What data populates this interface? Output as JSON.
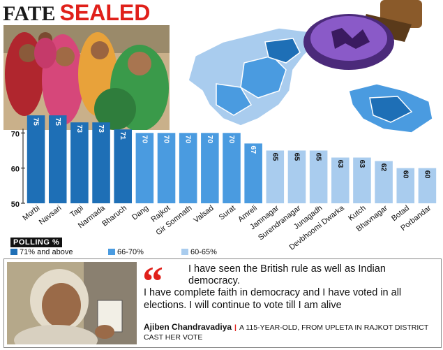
{
  "headline": {
    "part1": "FATE",
    "part2": "SEALED"
  },
  "legend": {
    "title": "POLLING %",
    "items": [
      {
        "label": "71% and above",
        "color": "#1e6fb6"
      },
      {
        "label": "66-70%",
        "color": "#4a9be0"
      },
      {
        "label": "60-65%",
        "color": "#a9ccee"
      }
    ]
  },
  "chart_data": {
    "type": "bar",
    "categories": [
      "Morbi",
      "Navsari",
      "Tapi",
      "Narmada",
      "Bharuch",
      "Dang",
      "Rajkot",
      "Gir Somnath",
      "Valsad",
      "Surat",
      "Amreli",
      "Jamnagar",
      "Surendranagar",
      "Junagadh",
      "Devbhoomi Dwarka",
      "Kutch",
      "Bhavnagar",
      "Botad",
      "Porbandar"
    ],
    "values": [
      75,
      75,
      73,
      73,
      71,
      70,
      70,
      70,
      70,
      70,
      67,
      65,
      65,
      65,
      63,
      63,
      62,
      60,
      60
    ],
    "yticks": [
      50,
      60,
      70
    ],
    "ylim": [
      50,
      78
    ],
    "colors": {
      "high": "#1e6fb6",
      "mid": "#4a9be0",
      "low": "#a9ccee"
    }
  },
  "quote": {
    "mark": "“",
    "line1": "I have seen the British rule as well as Indian democracy.",
    "rest": "I have complete faith in democracy and I have voted in all elections. I will continue to vote till I am alive",
    "name": "Ajiben Chandravadiya",
    "description": "A 115-YEAR-OLD, FROM UPLETA IN RAJKOT DISTRICT CAST HER VOTE"
  }
}
